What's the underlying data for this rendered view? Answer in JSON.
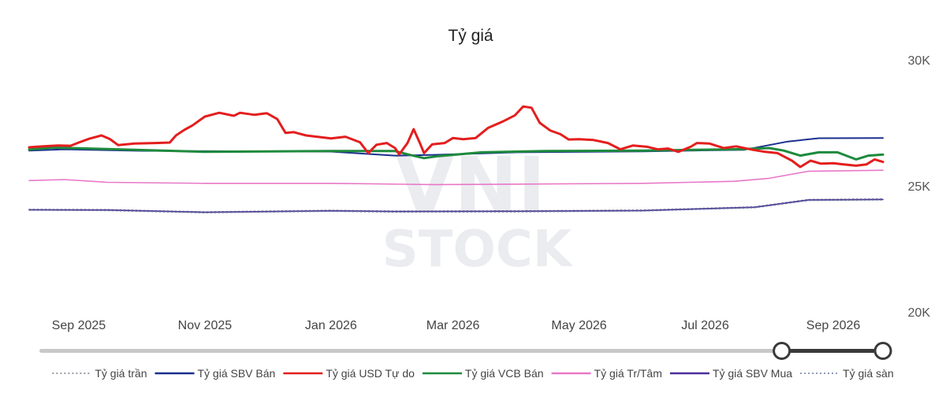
{
  "chart_data": {
    "type": "line",
    "title": "Tỷ giá",
    "watermark": "VNI STOCK",
    "ylim": [
      20000,
      30000
    ],
    "yticks": [
      {
        "value": 30000,
        "label": "30K"
      },
      {
        "value": 25000,
        "label": "25K"
      },
      {
        "value": 20000,
        "label": "20K"
      }
    ],
    "xlim": [
      "2025-08-08",
      "2026-09-25"
    ],
    "xticks": [
      {
        "date": "2025-09-01",
        "label": "Sep 2025"
      },
      {
        "date": "2025-11-01",
        "label": "Nov 2025"
      },
      {
        "date": "2026-01-01",
        "label": "Jan 2026"
      },
      {
        "date": "2026-03-01",
        "label": "Mar 2026"
      },
      {
        "date": "2026-05-01",
        "label": "May 2026"
      },
      {
        "date": "2026-07-01",
        "label": "Jul 2026"
      },
      {
        "date": "2026-09-01",
        "label": "Sep 2026"
      }
    ],
    "grid": false,
    "legend_position": "bottom",
    "series": [
      {
        "name": "Tỷ giá trần",
        "color": "#7a7a8a",
        "dash": true,
        "width": 1.4,
        "points": [
          [
            "2025-08-08",
            24070
          ],
          [
            "2025-09-15",
            24060
          ],
          [
            "2025-11-01",
            23970
          ],
          [
            "2026-01-01",
            24030
          ],
          [
            "2026-02-01",
            24000
          ],
          [
            "2026-04-01",
            24010
          ],
          [
            "2026-06-01",
            24040
          ],
          [
            "2026-07-25",
            24170
          ],
          [
            "2026-08-20",
            24460
          ],
          [
            "2026-09-25",
            24480
          ]
        ]
      },
      {
        "name": "Tỷ giá SBV Bán",
        "color": "#1b2f8f",
        "dash": false,
        "width": 2,
        "points": [
          [
            "2025-08-08",
            26400
          ],
          [
            "2025-08-25",
            26450
          ],
          [
            "2025-10-01",
            26390
          ],
          [
            "2026-01-01",
            26360
          ],
          [
            "2026-02-01",
            26200
          ],
          [
            "2026-02-20",
            26230
          ],
          [
            "2026-04-01",
            26330
          ],
          [
            "2026-06-01",
            26370
          ],
          [
            "2026-07-20",
            26430
          ],
          [
            "2026-08-10",
            26760
          ],
          [
            "2026-08-25",
            26890
          ],
          [
            "2026-09-25",
            26900
          ]
        ]
      },
      {
        "name": "Tỷ giá USD Tự do",
        "color": "#e41e1e",
        "dash": false,
        "width": 3,
        "points": [
          [
            "2025-08-08",
            26530
          ],
          [
            "2025-08-15",
            26570
          ],
          [
            "2025-08-22",
            26600
          ],
          [
            "2025-08-28",
            26590
          ],
          [
            "2025-09-01",
            26720
          ],
          [
            "2025-09-06",
            26870
          ],
          [
            "2025-09-12",
            27000
          ],
          [
            "2025-09-16",
            26860
          ],
          [
            "2025-09-20",
            26620
          ],
          [
            "2025-09-28",
            26680
          ],
          [
            "2025-10-08",
            26700
          ],
          [
            "2025-10-15",
            26720
          ],
          [
            "2025-10-18",
            27000
          ],
          [
            "2025-10-22",
            27220
          ],
          [
            "2025-10-26",
            27400
          ],
          [
            "2025-11-01",
            27750
          ],
          [
            "2025-11-08",
            27900
          ],
          [
            "2025-11-15",
            27780
          ],
          [
            "2025-11-18",
            27900
          ],
          [
            "2025-11-25",
            27820
          ],
          [
            "2025-12-01",
            27880
          ],
          [
            "2025-12-06",
            27650
          ],
          [
            "2025-12-10",
            27100
          ],
          [
            "2025-12-14",
            27130
          ],
          [
            "2025-12-20",
            27000
          ],
          [
            "2026-01-01",
            26880
          ],
          [
            "2026-01-08",
            26950
          ],
          [
            "2026-01-15",
            26730
          ],
          [
            "2026-01-19",
            26300
          ],
          [
            "2026-01-23",
            26630
          ],
          [
            "2026-01-28",
            26700
          ],
          [
            "2026-02-01",
            26500
          ],
          [
            "2026-02-03",
            26250
          ],
          [
            "2026-02-07",
            26700
          ],
          [
            "2026-02-10",
            27250
          ],
          [
            "2026-02-13",
            26700
          ],
          [
            "2026-02-15",
            26300
          ],
          [
            "2026-02-19",
            26650
          ],
          [
            "2026-02-25",
            26700
          ],
          [
            "2026-03-01",
            26900
          ],
          [
            "2026-03-06",
            26850
          ],
          [
            "2026-03-12",
            26900
          ],
          [
            "2026-03-18",
            27300
          ],
          [
            "2026-03-25",
            27550
          ],
          [
            "2026-03-31",
            27800
          ],
          [
            "2026-04-04",
            28150
          ],
          [
            "2026-04-08",
            28100
          ],
          [
            "2026-04-12",
            27500
          ],
          [
            "2026-04-17",
            27200
          ],
          [
            "2026-04-22",
            27050
          ],
          [
            "2026-04-26",
            26840
          ],
          [
            "2026-05-01",
            26850
          ],
          [
            "2026-05-08",
            26820
          ],
          [
            "2026-05-15",
            26700
          ],
          [
            "2026-05-21",
            26450
          ],
          [
            "2026-05-27",
            26600
          ],
          [
            "2026-06-03",
            26550
          ],
          [
            "2026-06-08",
            26450
          ],
          [
            "2026-06-13",
            26480
          ],
          [
            "2026-06-18",
            26350
          ],
          [
            "2026-06-24",
            26550
          ],
          [
            "2026-06-27",
            26700
          ],
          [
            "2026-07-03",
            26680
          ],
          [
            "2026-07-10",
            26500
          ],
          [
            "2026-07-16",
            26570
          ],
          [
            "2026-07-24",
            26430
          ],
          [
            "2026-07-30",
            26350
          ],
          [
            "2026-08-05",
            26300
          ],
          [
            "2026-08-12",
            26000
          ],
          [
            "2026-08-16",
            25750
          ],
          [
            "2026-08-21",
            26000
          ],
          [
            "2026-08-26",
            25880
          ],
          [
            "2026-09-01",
            25900
          ],
          [
            "2026-09-06",
            25850
          ],
          [
            "2026-09-12",
            25800
          ],
          [
            "2026-09-17",
            25850
          ],
          [
            "2026-09-21",
            26050
          ],
          [
            "2026-09-25",
            25950
          ]
        ]
      },
      {
        "name": "Tỷ giá VCB Bán",
        "color": "#1e8a3c",
        "dash": false,
        "width": 3,
        "points": [
          [
            "2025-08-08",
            26440
          ],
          [
            "2025-08-20",
            26520
          ],
          [
            "2025-09-15",
            26460
          ],
          [
            "2025-11-01",
            26350
          ],
          [
            "2026-01-01",
            26380
          ],
          [
            "2026-02-01",
            26380
          ],
          [
            "2026-02-08",
            26230
          ],
          [
            "2026-02-15",
            26100
          ],
          [
            "2026-02-22",
            26180
          ],
          [
            "2026-03-15",
            26330
          ],
          [
            "2026-04-15",
            26380
          ],
          [
            "2026-06-01",
            26400
          ],
          [
            "2026-07-15",
            26450
          ],
          [
            "2026-08-01",
            26500
          ],
          [
            "2026-08-08",
            26400
          ],
          [
            "2026-08-16",
            26200
          ],
          [
            "2026-08-25",
            26330
          ],
          [
            "2026-09-03",
            26330
          ],
          [
            "2026-09-12",
            26050
          ],
          [
            "2026-09-18",
            26200
          ],
          [
            "2026-09-25",
            26240
          ]
        ]
      },
      {
        "name": "Tỷ giá Tr/Tâm",
        "color": "#e878c8",
        "dash": false,
        "width": 1.6,
        "points": [
          [
            "2025-08-08",
            25210
          ],
          [
            "2025-08-25",
            25250
          ],
          [
            "2025-09-15",
            25140
          ],
          [
            "2025-11-01",
            25100
          ],
          [
            "2026-01-01",
            25100
          ],
          [
            "2026-02-20",
            25050
          ],
          [
            "2026-04-01",
            25070
          ],
          [
            "2026-06-01",
            25100
          ],
          [
            "2026-07-15",
            25180
          ],
          [
            "2026-08-01",
            25300
          ],
          [
            "2026-08-20",
            25580
          ],
          [
            "2026-09-25",
            25620
          ]
        ]
      },
      {
        "name": "Tỷ giá SBV Mua",
        "color": "#4a2f9a",
        "dash": false,
        "width": 1.6,
        "points": [
          [
            "2025-08-08",
            24050
          ],
          [
            "2025-09-15",
            24040
          ],
          [
            "2025-11-01",
            23950
          ],
          [
            "2026-01-01",
            24010
          ],
          [
            "2026-02-01",
            23980
          ],
          [
            "2026-04-01",
            23990
          ],
          [
            "2026-06-01",
            24020
          ],
          [
            "2026-07-25",
            24150
          ],
          [
            "2026-08-20",
            24440
          ],
          [
            "2026-09-25",
            24460
          ]
        ]
      },
      {
        "name": "Tỷ giá sàn",
        "color": "#6a7aa0",
        "dash": true,
        "width": 1.4,
        "points": [
          [
            "2025-08-08",
            24030
          ],
          [
            "2025-09-15",
            24020
          ],
          [
            "2025-11-01",
            23930
          ],
          [
            "2026-01-01",
            23990
          ],
          [
            "2026-02-01",
            23960
          ],
          [
            "2026-04-01",
            23970
          ],
          [
            "2026-06-01",
            24000
          ],
          [
            "2026-07-25",
            24130
          ],
          [
            "2026-08-20",
            24420
          ],
          [
            "2026-09-25",
            24440
          ]
        ]
      }
    ],
    "range_slider": {
      "start": 0.88,
      "end": 1.0
    }
  }
}
